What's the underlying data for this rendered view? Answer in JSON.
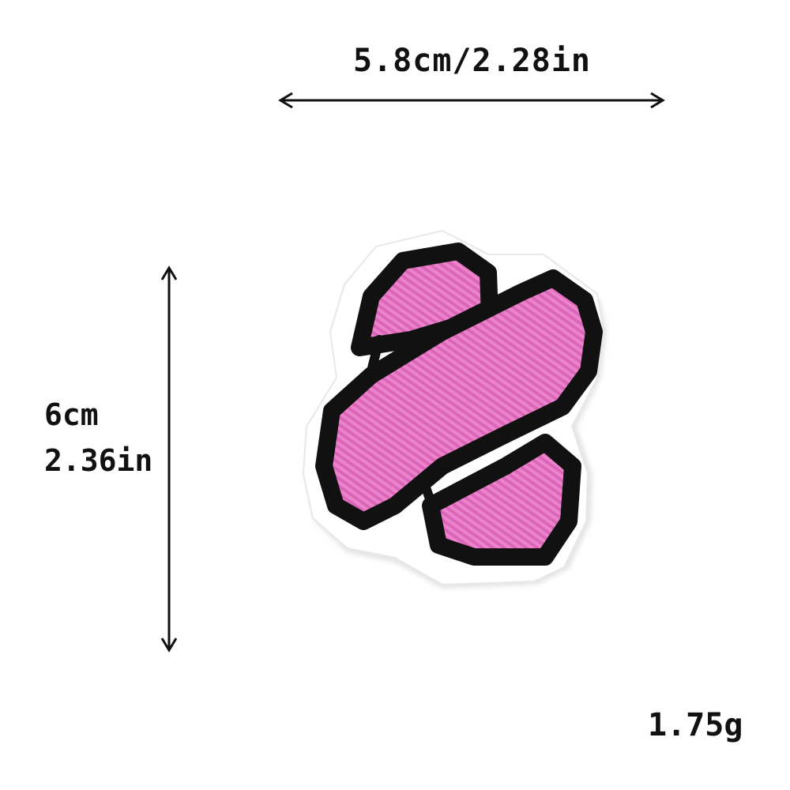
{
  "dimensions": {
    "width_text": "5.8cm/2.28in",
    "height_cm_text": "6cm",
    "height_in_text": "2.36in"
  },
  "weight_text": "1.75g",
  "patch": {
    "subject": "bandage patch",
    "colors": {
      "fill": "#e676c4",
      "outline": "#111111",
      "backing": "#ffffff",
      "shadow": "#d9d9d9"
    }
  }
}
